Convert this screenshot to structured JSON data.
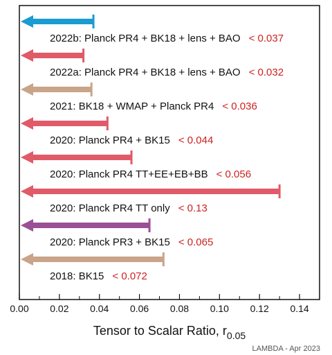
{
  "chart_data": {
    "type": "bar",
    "orientation": "horizontal",
    "style": "upper-limit arrows",
    "xlabel": "Tensor to Scalar Ratio, r",
    "xlabel_subscript": "0.05",
    "xlim": [
      0,
      0.15
    ],
    "xticks": [
      "0.00",
      "0.02",
      "0.04",
      "0.06",
      "0.08",
      "0.10",
      "0.12",
      "0.14"
    ],
    "grid": false,
    "credit": "LAMBDA - Apr 2023",
    "series": [
      {
        "label": "2022b: Planck PR4 + BK18 + lens + BAO",
        "limit_text": "< 0.037",
        "value": 0.037,
        "color": "#1a9bd1"
      },
      {
        "label": "2022a: Planck PR4 + BK18 + lens + BAO",
        "limit_text": "< 0.032",
        "value": 0.032,
        "color": "#e05a68"
      },
      {
        "label": "2021: BK18 + WMAP + Planck PR4",
        "limit_text": "< 0.036",
        "value": 0.036,
        "color": "#c9a488"
      },
      {
        "label": "2020: Planck PR4 + BK15",
        "limit_text": "< 0.044",
        "value": 0.044,
        "color": "#e05a68"
      },
      {
        "label": "2020: Planck PR4 TT+EE+EB+BB",
        "limit_text": "< 0.056",
        "value": 0.056,
        "color": "#e05a68"
      },
      {
        "label": "2020: Planck PR4 TT only",
        "limit_text": "< 0.13",
        "value": 0.13,
        "color": "#e05a68"
      },
      {
        "label": "2020: Planck PR3 + BK15",
        "limit_text": "< 0.065",
        "value": 0.065,
        "color": "#9b4f96"
      },
      {
        "label": "2018: BK15",
        "limit_text": "< 0.072",
        "value": 0.072,
        "color": "#c9a488"
      }
    ]
  }
}
